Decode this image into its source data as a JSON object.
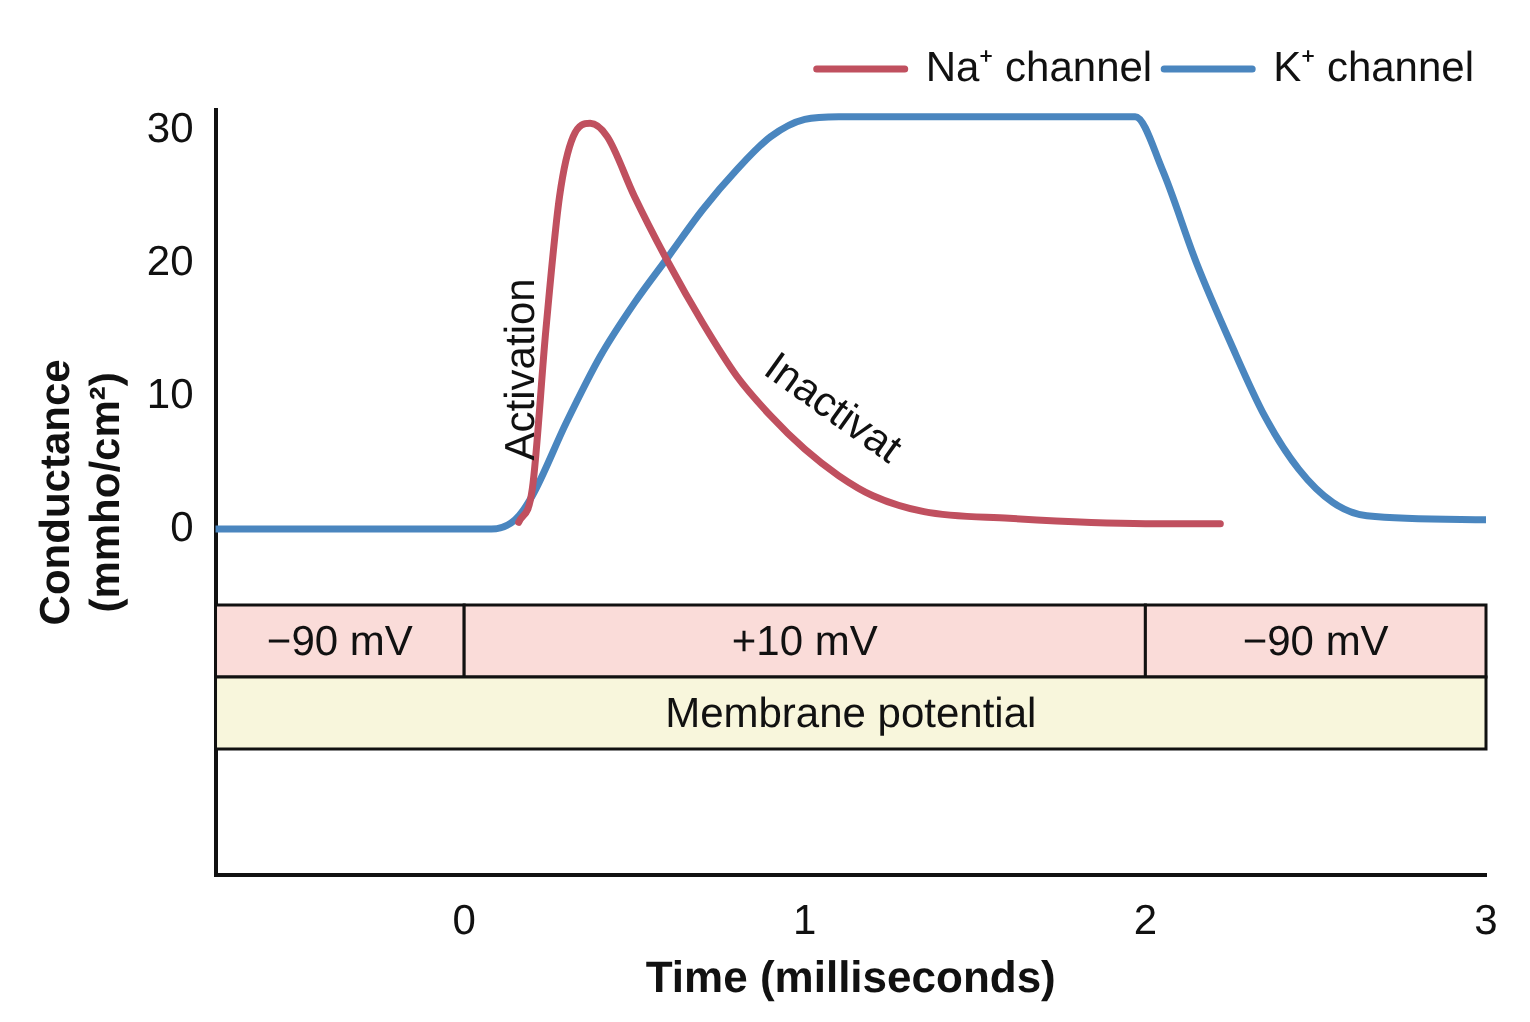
{
  "chart_data": {
    "type": "line",
    "xlabel": "Time (milliseconds)",
    "ylabel": "Conductance (mmho/cm²)",
    "xlim": [
      -0.73,
      3
    ],
    "xticks": [
      0,
      1,
      2,
      3
    ],
    "ylim": [
      -26,
      31.5
    ],
    "yticks": [
      0,
      10,
      20,
      30
    ],
    "grid": false,
    "legend": "top right",
    "marker": "none",
    "line_style": "solid",
    "series": [
      {
        "name": "Na⁺ channel",
        "color": "#c0505f",
        "x": [
          0.16,
          0.2,
          0.24,
          0.28,
          0.32,
          0.37,
          0.42,
          0.5,
          0.6,
          0.7,
          0.8,
          0.9,
          1.0,
          1.1,
          1.2,
          1.35,
          1.6,
          2.0,
          2.22
        ],
        "values": [
          0.5,
          3,
          15,
          25,
          29.5,
          30.5,
          29.5,
          25,
          20,
          15.5,
          11.5,
          8.5,
          6,
          4,
          2.5,
          1.3,
          0.8,
          0.4,
          0.4
        ]
      },
      {
        "name": "K⁺ channel",
        "color": "#4a86bf",
        "x": [
          -0.73,
          0.08,
          0.15,
          0.2,
          0.3,
          0.4,
          0.5,
          0.6,
          0.7,
          0.8,
          0.9,
          1.0,
          1.1,
          1.97,
          2.05,
          2.15,
          2.25,
          2.35,
          2.45,
          2.55,
          2.65,
          3.0
        ],
        "values": [
          0,
          0,
          0.7,
          2.5,
          8,
          13,
          17,
          20.5,
          24,
          27,
          29.5,
          30.8,
          31,
          31,
          27,
          20,
          14,
          8.5,
          4.5,
          2,
          1,
          0.7
        ]
      }
    ],
    "bands": [
      {
        "axis": "x",
        "from": -0.73,
        "to": 0,
        "label": "−90 mV",
        "color": "#fadcd9"
      },
      {
        "axis": "x",
        "from": 0,
        "to": 2,
        "label": "+10 mV",
        "color": "#fadcd9"
      },
      {
        "axis": "x",
        "from": 2,
        "to": 3,
        "label": "−90 mV",
        "color": "#fadcd9"
      },
      {
        "axis": "x",
        "from": -0.73,
        "to": 3,
        "label": "Membrane potential",
        "color": "#f8f6dc"
      }
    ],
    "annotations": [
      "Activation",
      "Inactivat"
    ]
  }
}
